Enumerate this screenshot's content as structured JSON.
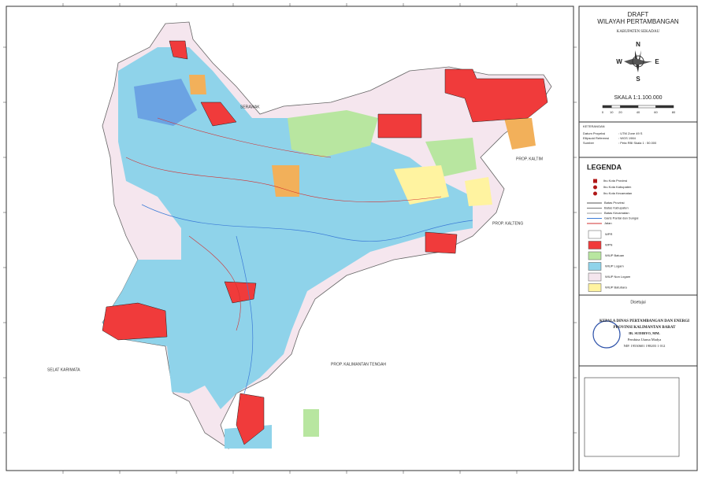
{
  "title": {
    "line1": "DRAFT",
    "line2": "WILAYAH PERTAMBANGAN",
    "subtitle": "KABUPATEN SEKADAU"
  },
  "compass": {
    "n": "N",
    "s": "S",
    "e": "E",
    "w": "W"
  },
  "scale": {
    "label": "SKALA 1:1.100.000",
    "ticks": [
      0,
      10,
      20,
      40,
      60,
      80
    ]
  },
  "notes": {
    "heading": "KETERANGAN",
    "rows": [
      [
        "Datum Proyeksi",
        ": UTM Zone 49 S"
      ],
      [
        "Ellipsoid Referensi",
        ": WGS 1984"
      ],
      [
        "Sumber",
        ": Peta RBI Skala 1 : 50.000"
      ]
    ]
  },
  "legend": {
    "heading": "LEGENDA",
    "points": [
      {
        "label": "Ibu Kota Provinsi",
        "color": "#b01818"
      },
      {
        "label": "Ibu Kota Kabupaten",
        "color": "#b01818"
      },
      {
        "label": "Ibu Kota Kecamatan",
        "color": "#b01818"
      }
    ],
    "lines": [
      {
        "label": "Batas Provinsi",
        "color": "#555555"
      },
      {
        "label": "Batas Kabupaten",
        "color": "#777777"
      },
      {
        "label": "Batas Kecamatan",
        "color": "#999999"
      },
      {
        "label": "Garis Pantai dan Sungai",
        "color": "#3b7bd6"
      },
      {
        "label": "Jalan",
        "color": "#d23030"
      }
    ],
    "areas": [
      {
        "label": "WPR",
        "color": "#ffffff"
      },
      {
        "label": "WPN",
        "color": "#f03b3b"
      },
      {
        "label": "WIUP Batuan",
        "color": "#b8e6a0"
      },
      {
        "label": "WIUP Logam",
        "color": "#8fd3ea"
      },
      {
        "label": "WIUP Non Logam",
        "color": "#f5e6ee"
      },
      {
        "label": "WIUP Batubara",
        "color": "#fff3a0"
      }
    ]
  },
  "approval": {
    "heading": "Disetujui",
    "lines": [
      "KEPALA DINAS PERTAMBANGAN DAN ENERGI",
      "PROVINSI KALIMANTAN BARAT",
      "IR. SUDIBYO, MM.",
      "Pembina Utama Madya",
      "NIP. 19530601 198203 1 012"
    ]
  },
  "map_labels": [
    "SERAWAK",
    "PROP. KALTIM",
    "PROP. KALTENG",
    "PROP. KALIMANTAN TENGAH",
    "SELAT KARIMATA"
  ]
}
